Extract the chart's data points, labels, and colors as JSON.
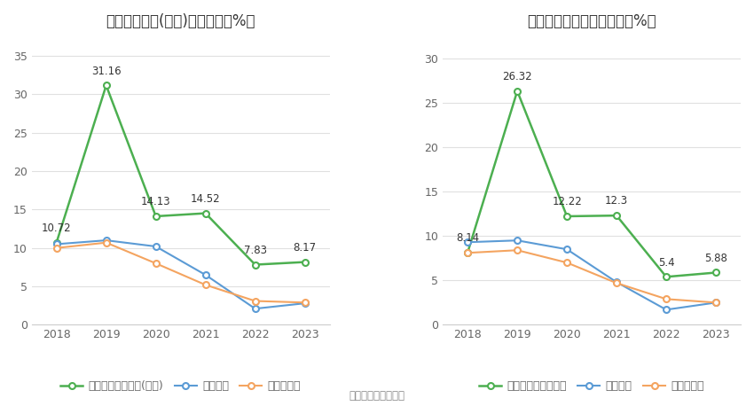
{
  "left_title": "净资产收益率(加权)历年情况（%）",
  "right_title": "投入资本回报率历年情况（%）",
  "years": [
    2018,
    2019,
    2020,
    2021,
    2022,
    2023
  ],
  "left": {
    "company": [
      10.72,
      31.16,
      14.13,
      14.52,
      7.83,
      8.17
    ],
    "industry_avg": [
      10.5,
      11.0,
      10.2,
      6.5,
      2.1,
      2.8
    ],
    "industry_median": [
      10.0,
      10.7,
      8.0,
      5.2,
      3.1,
      2.9
    ],
    "company_label": "公司净资产收益率(加权)",
    "avg_label": "行业均值",
    "median_label": "行业中位数",
    "ylim": [
      0,
      37
    ],
    "yticks": [
      0,
      5,
      10,
      15,
      20,
      25,
      30,
      35
    ]
  },
  "right": {
    "company": [
      8.14,
      26.32,
      12.22,
      12.3,
      5.4,
      5.88
    ],
    "industry_avg": [
      9.3,
      9.5,
      8.5,
      4.8,
      1.7,
      2.5
    ],
    "industry_median": [
      8.1,
      8.4,
      7.0,
      4.7,
      2.9,
      2.5
    ],
    "company_label": "公司投入资本回报率",
    "avg_label": "行业均值",
    "median_label": "行业中位数",
    "ylim": [
      0,
      32
    ],
    "yticks": [
      0,
      5,
      10,
      15,
      20,
      25,
      30
    ]
  },
  "company_color": "#4caf50",
  "avg_color": "#5b9bd5",
  "median_color": "#f4a460",
  "source_text": "数据来源：恒生聚源",
  "bg_color": "#ffffff",
  "grid_color": "#e0e0e0",
  "title_fontsize": 12,
  "tick_fontsize": 9,
  "annotation_fontsize": 8.5,
  "legend_fontsize": 9
}
